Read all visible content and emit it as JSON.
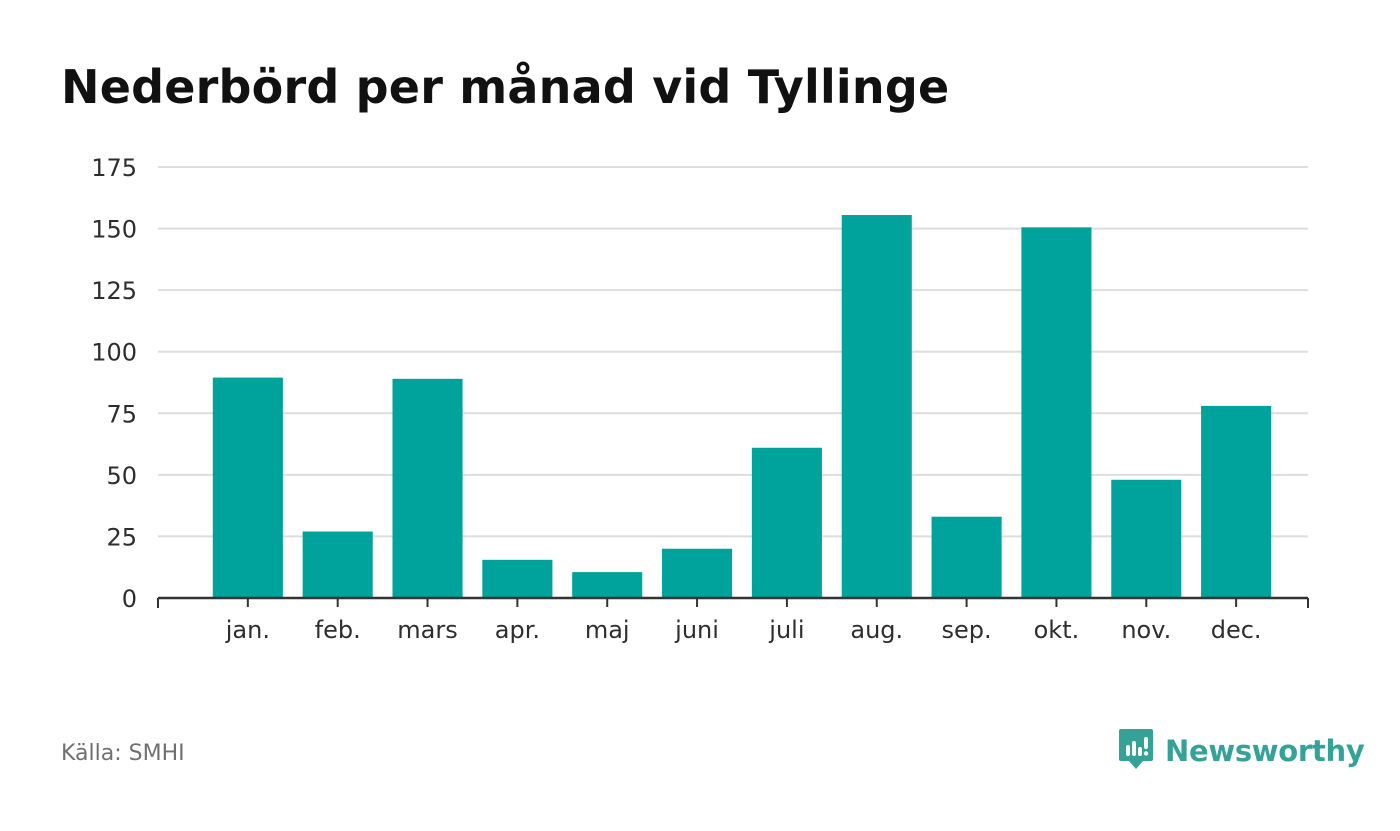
{
  "title": "Nederbörd per månad vid Tyllinge",
  "source": "Källa: SMHI",
  "brand": {
    "name": "Newsworthy",
    "icon": "newsworthy-logo-icon",
    "color": "#35a297"
  },
  "colors": {
    "bar": "#00a39b",
    "grid": "#dedede",
    "axis": "#333333"
  },
  "chart_data": {
    "type": "bar",
    "title": "Nederbörd per månad vid Tyllinge",
    "xlabel": "",
    "ylabel": "",
    "categories": [
      "jan.",
      "feb.",
      "mars",
      "apr.",
      "maj",
      "juni",
      "juli",
      "aug.",
      "sep.",
      "okt.",
      "nov.",
      "dec."
    ],
    "values": [
      89.5,
      27,
      89,
      15.5,
      10.5,
      20,
      61,
      155.5,
      33,
      150.5,
      48,
      78
    ],
    "ylim": [
      0,
      175
    ],
    "yticks": [
      "0",
      "25",
      "50",
      "75",
      "100",
      "125",
      "150",
      "175"
    ],
    "grid": true,
    "legend": "none"
  }
}
